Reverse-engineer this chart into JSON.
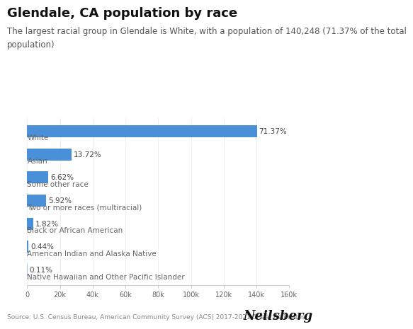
{
  "title": "Glendale, CA population by race",
  "subtitle_line1": "The largest racial group in Glendale is White, with a population of 140,248 (71.37% of the total",
  "subtitle_line2": "population)",
  "categories": [
    "White",
    "Asian",
    "Some other race",
    "Two or more races (multiracial)",
    "Black or African American",
    "American Indian and Alaska Native",
    "Native Hawaiian and Other Pacific Islander"
  ],
  "values": [
    140248,
    26960,
    13004,
    11625,
    3574,
    864,
    216
  ],
  "percentages": [
    "71.37%",
    "13.72%",
    "6.62%",
    "5.92%",
    "1.82%",
    "0.44%",
    "0.11%"
  ],
  "bar_color": "#4a90d9",
  "last_bar_color": "#b0c8e8",
  "background_color": "#ffffff",
  "xlim": [
    0,
    160000
  ],
  "xticks": [
    0,
    20000,
    40000,
    60000,
    80000,
    100000,
    120000,
    140000,
    160000
  ],
  "xtick_labels": [
    "0",
    "20k",
    "40k",
    "60k",
    "80k",
    "100k",
    "120k",
    "140k",
    "160k"
  ],
  "source_text": "Source: U.S. Census Bureau, American Community Survey (ACS) 2017-2021 5-Year Estimates",
  "brand_text": "Neilsberg",
  "title_fontsize": 13,
  "subtitle_fontsize": 8.5,
  "category_fontsize": 7.5,
  "pct_fontsize": 7.5,
  "tick_fontsize": 7,
  "source_fontsize": 6.5,
  "brand_fontsize": 13
}
